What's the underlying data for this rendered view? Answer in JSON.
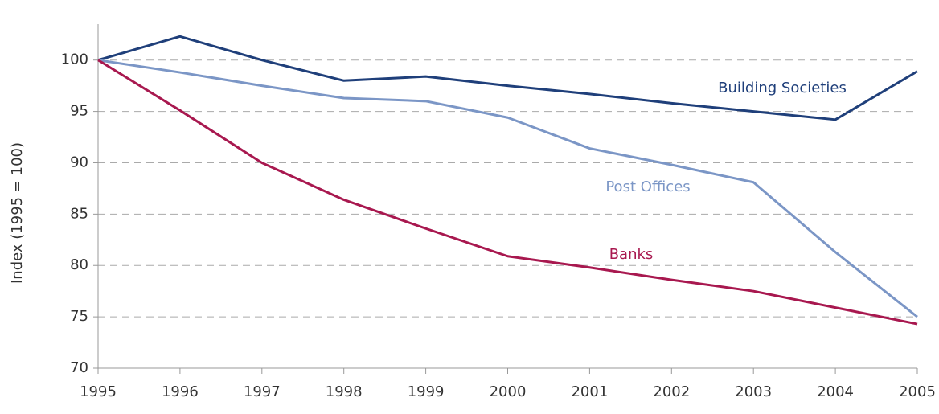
{
  "chart_data": {
    "type": "line",
    "y_label": "Index (1995 = 100)",
    "x": [
      1995,
      1996,
      1997,
      1998,
      1999,
      2000,
      2001,
      2002,
      2003,
      2004,
      2005
    ],
    "xlim": [
      1995,
      2005
    ],
    "xticks": [
      1995,
      1996,
      1997,
      1998,
      1999,
      2000,
      2001,
      2002,
      2003,
      2004,
      2005
    ],
    "ylim": [
      70,
      103.5
    ],
    "yticks": [
      70,
      75,
      80,
      85,
      90,
      95,
      100
    ],
    "grid": true,
    "series": [
      {
        "name": "Building Societies",
        "color": "#1f3f7a",
        "values": [
          100,
          102.3,
          100.0,
          98.0,
          98.4,
          97.5,
          96.7,
          95.8,
          95.0,
          94.2,
          98.9
        ]
      },
      {
        "name": "Post Offices",
        "color": "#7b96c6",
        "values": [
          100,
          98.8,
          97.5,
          96.3,
          96.0,
          94.4,
          91.4,
          89.8,
          88.1,
          81.3,
          75.0
        ]
      },
      {
        "name": "Banks",
        "color": "#a8184f",
        "values": [
          100,
          95.1,
          90.0,
          86.4,
          83.6,
          80.9,
          79.8,
          78.6,
          77.5,
          75.9,
          74.3
        ]
      }
    ]
  }
}
